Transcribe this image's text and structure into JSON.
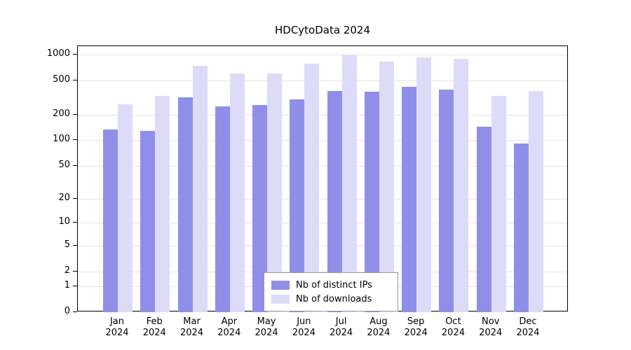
{
  "title": "HDCytoData 2024",
  "chart_data": {
    "type": "bar",
    "title": "HDCytoData 2024",
    "scale": "log10(1+x)",
    "categories": [
      "Jan",
      "Feb",
      "Mar",
      "Apr",
      "May",
      "Jun",
      "Jul",
      "Aug",
      "Sep",
      "Oct",
      "Nov",
      "Dec"
    ],
    "year_label": "2024",
    "series": [
      {
        "name": "Nb of distinct IPs",
        "color": "#8f8fea",
        "values": [
          135,
          130,
          320,
          250,
          260,
          300,
          375,
          370,
          420,
          395,
          145,
          92
        ]
      },
      {
        "name": "Nb of downloads",
        "color": "#dcdcf8",
        "values": [
          265,
          330,
          740,
          610,
          610,
          780,
          980,
          830,
          925,
          900,
          330,
          380
        ]
      }
    ],
    "yticks": [
      0,
      1,
      2,
      5,
      10,
      20,
      50,
      100,
      200,
      500,
      1000
    ],
    "ylim": [
      0,
      1260
    ],
    "xlabel": "",
    "ylabel": "",
    "grid": true,
    "legend_position": "bottom-center",
    "colors": {
      "grid": "#e4e4e4",
      "axis": "#000000",
      "background": "#ffffff"
    }
  }
}
